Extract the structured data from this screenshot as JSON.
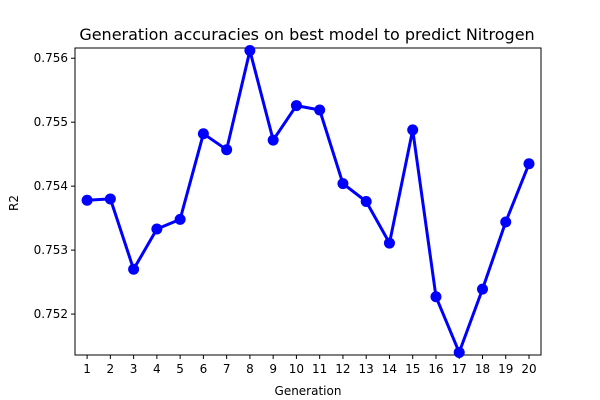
{
  "chart_data": {
    "type": "line",
    "title": "Generation accuracies on best model to predict Nitrogen",
    "xlabel": "Generation",
    "ylabel": "R2",
    "ylim": [
      0.75136,
      0.75616
    ],
    "yticks": [
      "0.752",
      "0.753",
      "0.754",
      "0.755",
      "0.756"
    ],
    "categories": [
      "1",
      "2",
      "3",
      "4",
      "5",
      "6",
      "7",
      "8",
      "9",
      "10",
      "11",
      "12",
      "13",
      "14",
      "15",
      "16",
      "17",
      "18",
      "19",
      "20"
    ],
    "values": [
      0.75378,
      0.7538,
      0.7527,
      0.75333,
      0.75348,
      0.75482,
      0.75457,
      0.75612,
      0.75472,
      0.75526,
      0.75519,
      0.75404,
      0.75376,
      0.75311,
      0.75488,
      0.75227,
      0.7514,
      0.75239,
      0.75344,
      0.75435
    ],
    "color": "#0000ff",
    "grid": false,
    "legend": false
  }
}
